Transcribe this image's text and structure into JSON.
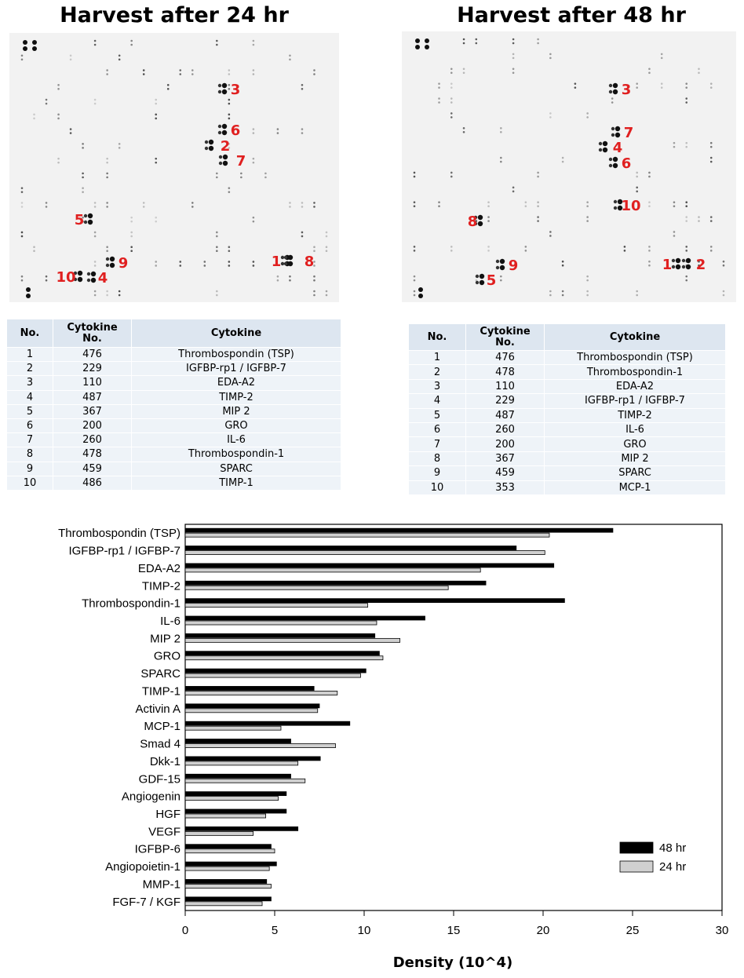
{
  "panels": [
    {
      "title": "Harvest after 24 hr",
      "spot_labels": [
        "3",
        "6",
        "2",
        "7",
        "5",
        "1",
        "8",
        "9",
        "10",
        "4"
      ]
    },
    {
      "title": "Harvest after 48 hr",
      "spot_labels": [
        "3",
        "7",
        "4",
        "6",
        "10",
        "8",
        "9",
        "1",
        "2",
        "5"
      ]
    }
  ],
  "tables": [
    {
      "columns": [
        "No.",
        "Cytokine No.",
        "Cytokine"
      ],
      "rows": [
        [
          1,
          476,
          "Thrombospondin (TSP)"
        ],
        [
          2,
          229,
          "IGFBP-rp1 / IGFBP-7"
        ],
        [
          3,
          110,
          "EDA-A2"
        ],
        [
          4,
          487,
          "TIMP-2"
        ],
        [
          5,
          367,
          "MIP 2"
        ],
        [
          6,
          200,
          "GRO"
        ],
        [
          7,
          260,
          "IL-6"
        ],
        [
          8,
          478,
          "Thrombospondin-1"
        ],
        [
          9,
          459,
          "SPARC"
        ],
        [
          10,
          486,
          "TIMP-1"
        ]
      ]
    },
    {
      "columns": [
        "No.",
        "Cytokine No.",
        "Cytokine"
      ],
      "rows": [
        [
          1,
          476,
          "Thrombospondin (TSP)"
        ],
        [
          2,
          478,
          "Thrombospondin-1"
        ],
        [
          3,
          110,
          "EDA-A2"
        ],
        [
          4,
          229,
          "IGFBP-rp1 / IGFBP-7"
        ],
        [
          5,
          487,
          "TIMP-2"
        ],
        [
          6,
          260,
          "IL-6"
        ],
        [
          7,
          200,
          "GRO"
        ],
        [
          8,
          367,
          "MIP 2"
        ],
        [
          9,
          459,
          "SPARC"
        ],
        [
          10,
          353,
          "MCP-1"
        ]
      ]
    }
  ],
  "chart_data": {
    "type": "hbar",
    "x_label": "Density (10^4)",
    "categories": [
      "Thrombospondin (TSP)",
      "IGFBP-rp1 / IGFBP-7",
      "EDA-A2",
      "TIMP-2",
      "Thrombospondin-1",
      "IL-6",
      "MIP 2",
      "GRO",
      "SPARC",
      "TIMP-1",
      "Activin A",
      "MCP-1",
      "Smad 4",
      "Dkk-1",
      "GDF-15",
      "Angiogenin",
      "HGF",
      "VEGF",
      "IGFBP-6",
      "Angiopoietin-1",
      "MMP-1",
      "FGF-7 / KGF"
    ],
    "series": [
      {
        "name": "48 hr",
        "color": "#000000",
        "values": [
          23.9,
          18.5,
          20.6,
          16.8,
          21.2,
          13.4,
          10.6,
          10.85,
          10.1,
          7.2,
          7.5,
          9.2,
          5.9,
          7.55,
          5.9,
          5.65,
          5.65,
          6.3,
          4.8,
          5.1,
          4.55,
          4.8
        ]
      },
      {
        "name": "24 hr",
        "color": "#d0d0d0",
        "values": [
          20.35,
          20.1,
          16.5,
          14.7,
          10.2,
          10.7,
          12.0,
          11.05,
          9.8,
          8.5,
          7.4,
          5.35,
          8.4,
          6.3,
          6.7,
          5.2,
          4.5,
          3.8,
          5.0,
          4.7,
          4.8,
          4.3
        ]
      }
    ],
    "xlim": [
      0,
      30
    ],
    "xticks": [
      0,
      5,
      10,
      15,
      20,
      25,
      30
    ],
    "legend": "lower right"
  }
}
